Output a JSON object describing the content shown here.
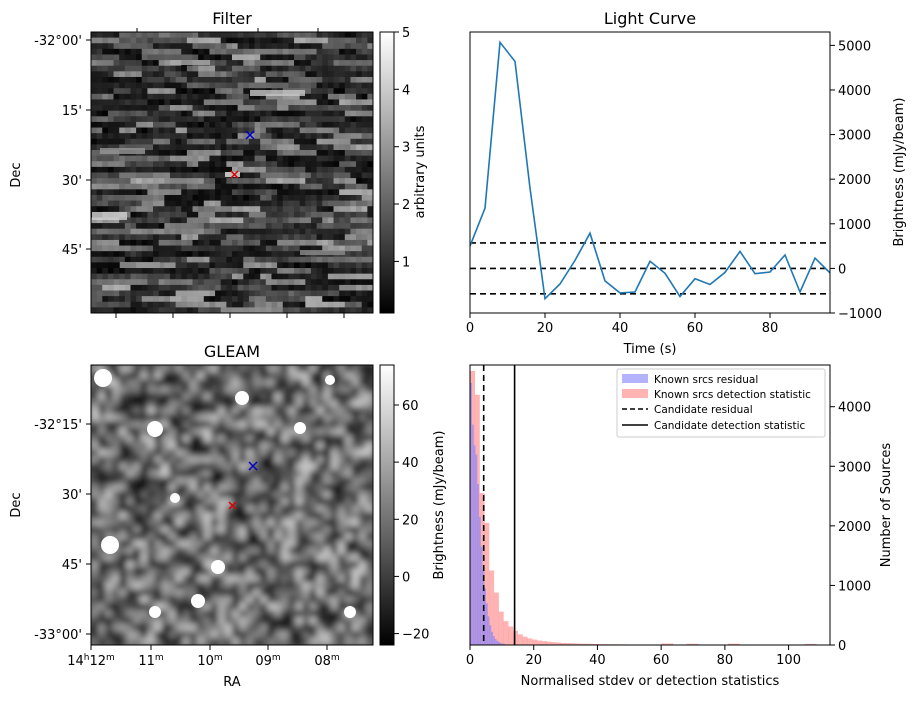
{
  "filter_panel": {
    "title": "Filter",
    "ylabel": "Dec",
    "dec_ticks": [
      "-32°00'",
      "15'",
      "30'",
      "45'"
    ],
    "colorbar": {
      "label": "arbitrary units",
      "ticks": [
        "1",
        "2",
        "3",
        "4",
        "5"
      ],
      "range": [
        0.1,
        5
      ]
    },
    "markers": [
      {
        "name": "candidate",
        "color": "#0000cc",
        "symbol": "x"
      },
      {
        "name": "source",
        "color": "#dd0000",
        "symbol": "x"
      }
    ]
  },
  "gleam_panel": {
    "title": "GLEAM",
    "ylabel": "Dec",
    "xlabel": "RA",
    "dec_ticks": [
      "-32°15'",
      "30'",
      "45'",
      "-33°00'"
    ],
    "ra_ticks": [
      {
        "h": "14",
        "m": "12"
      },
      {
        "h": "",
        "m": "11"
      },
      {
        "h": "",
        "m": "10"
      },
      {
        "h": "",
        "m": "09"
      },
      {
        "h": "",
        "m": "08"
      }
    ],
    "ra_hour_sup": "h",
    "ra_min_sup": "m",
    "colorbar": {
      "label": "Brightness (mJy/beam)",
      "ticks": [
        "−20",
        "0",
        "20",
        "40",
        "60"
      ],
      "range": [
        -24,
        74
      ]
    }
  },
  "chart_data": [
    {
      "type": "line",
      "title": "Light Curve",
      "xlabel": "Time (s)",
      "ylabel": "Brightness (mJy/beam)",
      "xlim": [
        0,
        96
      ],
      "ylim": [
        -1000,
        5300
      ],
      "x_ticks": [
        0,
        20,
        40,
        60,
        80
      ],
      "y_ticks": [
        -1000,
        0,
        1000,
        2000,
        3000,
        4000,
        5000
      ],
      "x_tick_labels": [
        "0",
        "20",
        "40",
        "60",
        "80"
      ],
      "y_tick_labels": [
        "−1000",
        "0",
        "1000",
        "2000",
        "3000",
        "4000",
        "5000"
      ],
      "series": [
        {
          "name": "light curve",
          "color": "#1f77b4",
          "x": [
            0,
            4,
            8,
            12,
            16,
            20,
            24,
            28,
            32,
            36,
            40,
            44,
            48,
            52,
            56,
            60,
            64,
            68,
            72,
            76,
            80,
            84,
            88,
            92,
            96
          ],
          "y": [
            500,
            1350,
            5070,
            4640,
            1800,
            -680,
            -350,
            180,
            790,
            -280,
            -550,
            -530,
            160,
            -110,
            -630,
            -230,
            -360,
            -90,
            380,
            -120,
            -80,
            300,
            -530,
            230,
            -100
          ]
        }
      ],
      "hlines": [
        {
          "y": 570,
          "style": "dashed"
        },
        {
          "y": 0,
          "style": "dashed"
        },
        {
          "y": -570,
          "style": "dashed"
        }
      ]
    },
    {
      "type": "bar",
      "title": "",
      "xlabel": "Normalised stdev or detection statistics",
      "ylabel": "Number of Sources",
      "ylabel_left": "Brightness (mJy/beam)",
      "xlim": [
        0,
        113
      ],
      "ylim": [
        0,
        4700
      ],
      "x_ticks": [
        0,
        20,
        40,
        60,
        80,
        100
      ],
      "y_ticks": [
        0,
        1000,
        2000,
        3000,
        4000
      ],
      "x_tick_labels": [
        "0",
        "20",
        "40",
        "60",
        "80",
        "100"
      ],
      "y_tick_labels": [
        "0",
        "1000",
        "2000",
        "3000",
        "4000"
      ],
      "series": [
        {
          "name": "Known srcs residual",
          "color": "#8080ff",
          "bin_width": 0.55,
          "bins_start": 0,
          "values": [
            4400,
            3700,
            3350,
            3200,
            2700,
            2150,
            1650,
            1250,
            950,
            700,
            480,
            330,
            220,
            150,
            100,
            70,
            50,
            35,
            25,
            18
          ]
        },
        {
          "name": "Known srcs detection statistic",
          "color": "#ff8080",
          "bin_width": 1.5,
          "bins_start": 0,
          "values": [
            4600,
            4200,
            2550,
            2050,
            1250,
            880,
            560,
            400,
            310,
            240,
            180,
            140,
            110,
            90,
            75,
            65,
            55,
            48,
            42,
            36,
            32,
            28,
            25,
            22,
            20,
            18,
            16,
            14,
            13,
            12,
            11,
            10,
            10,
            9,
            9,
            8,
            8,
            8,
            8,
            8
          ]
        }
      ],
      "vlines": [
        {
          "name": "Candidate residual",
          "x": 4.3,
          "style": "dashed"
        },
        {
          "name": "Candidate detection statistic",
          "x": 14.0,
          "style": "solid"
        }
      ],
      "sparse_tail": [
        {
          "x": 60.0,
          "y": 25
        },
        {
          "x": 68.0,
          "y": 20
        },
        {
          "x": 81.0,
          "y": 22
        },
        {
          "x": 105.0,
          "y": 18
        }
      ]
    }
  ]
}
